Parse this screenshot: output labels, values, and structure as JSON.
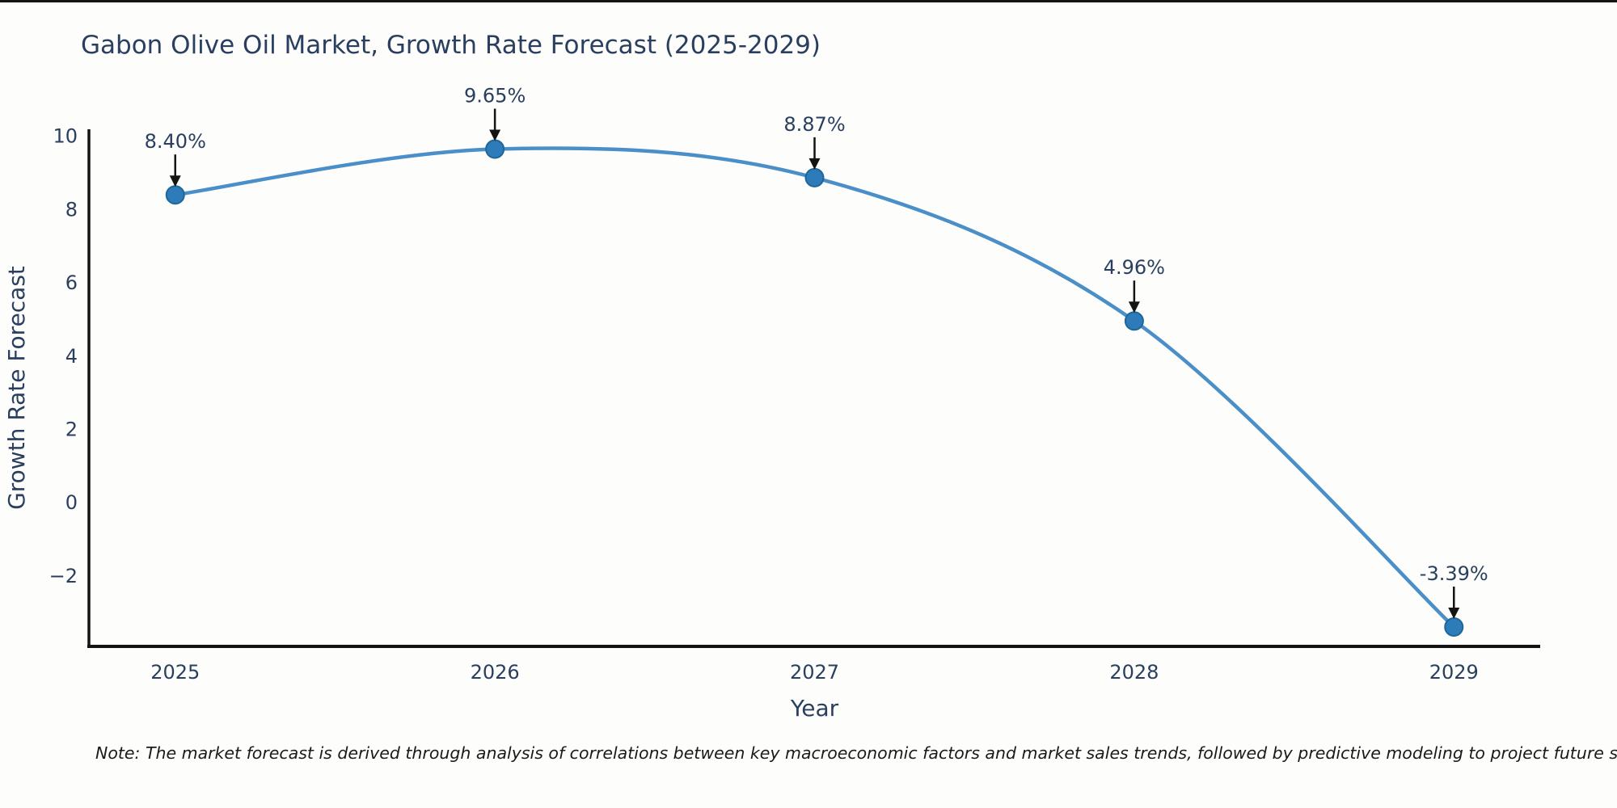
{
  "page": {
    "background_color": "#fdfdfb",
    "top_border_color": "#141414"
  },
  "note": "Note: The market forecast is derived through analysis of correlations between key macroeconomic factors and market sales trends, followed by predictive modeling to project future sales",
  "chart_data": {
    "type": "line",
    "title": "Gabon Olive Oil Market, Growth Rate Forecast (2025-2029)",
    "xlabel": "Year",
    "ylabel": "Growth Rate Forecast",
    "categories": [
      "2025",
      "2026",
      "2027",
      "2028",
      "2029"
    ],
    "x": [
      2025,
      2026,
      2027,
      2028,
      2029
    ],
    "values": [
      8.4,
      9.65,
      8.87,
      4.96,
      -3.39
    ],
    "point_labels": [
      "8.40%",
      "9.65%",
      "8.87%",
      "4.96%",
      "-3.39%"
    ],
    "y_ticks": [
      10,
      8,
      6,
      4,
      2,
      0,
      -2
    ],
    "y_tick_labels": [
      "10",
      "8",
      "6",
      "4",
      "2",
      "0",
      "−2"
    ],
    "xlim": [
      2024.73,
      2029.27
    ],
    "ylim": [
      -3.92,
      10.19
    ],
    "line_shape": "spline",
    "grid": false,
    "legend": "none",
    "colors": {
      "line": "#4a8fc7",
      "marker_fill": "#2d7bb9",
      "marker_stroke": "#1f6699",
      "axis_line": "#141414",
      "tick_text": "#2a3f5f",
      "title_text": "#2a3f5f",
      "annotation_text": "#2a3f5f",
      "annotation_arrow": "#141414",
      "note_text": "#1a1a1a"
    }
  }
}
